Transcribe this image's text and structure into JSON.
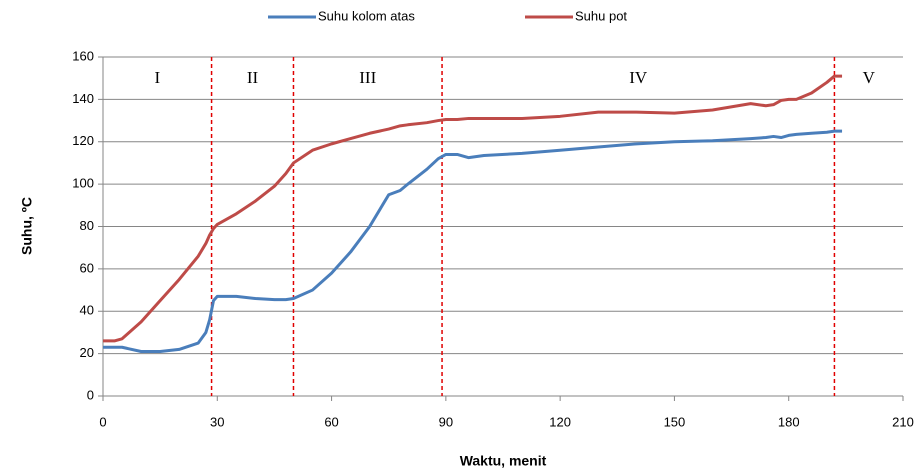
{
  "chart_data": {
    "type": "line",
    "x_label": "Waktu, menit",
    "y_label": "Suhu, ºC",
    "x": [
      0,
      3,
      5,
      10,
      15,
      20,
      25,
      27,
      28,
      29,
      30,
      35,
      40,
      45,
      48,
      50,
      55,
      60,
      65,
      70,
      75,
      78,
      80,
      85,
      88,
      90,
      93,
      96,
      100,
      110,
      120,
      130,
      140,
      150,
      160,
      170,
      174,
      176,
      178,
      180,
      182,
      186,
      190,
      192,
      194
    ],
    "series": [
      {
        "name": "Suhu kolom atas",
        "color": "#4a7ebb",
        "values": [
          23,
          23,
          23,
          21,
          21,
          22,
          25,
          30,
          36,
          45,
          47,
          47,
          46,
          45.5,
          45.5,
          46,
          50,
          58,
          68,
          80,
          95,
          97,
          100,
          107,
          112,
          114,
          114,
          112.5,
          113.5,
          114.5,
          116,
          117.5,
          119,
          120,
          120.5,
          121.5,
          122,
          122.5,
          122,
          123,
          123.5,
          124,
          124.5,
          125,
          125
        ]
      },
      {
        "name": "Suhu pot",
        "color": "#be4b48",
        "values": [
          26,
          26,
          27,
          35,
          45,
          55,
          66,
          72,
          76,
          79,
          81,
          86,
          92,
          99,
          105,
          110,
          116,
          119,
          121.5,
          124,
          126,
          127.5,
          128,
          129,
          130,
          130.5,
          130.5,
          131,
          131,
          131,
          132,
          134,
          134,
          133.5,
          135,
          138,
          137,
          137.5,
          139.5,
          140,
          140,
          143,
          148,
          151,
          151
        ]
      }
    ],
    "phase_boundaries": [
      28.5,
      50,
      89,
      192
    ],
    "phase_labels": [
      "I",
      "II",
      "III",
      "IV",
      "V"
    ],
    "phase_line_color": "#e00000",
    "xlim": [
      0,
      210
    ],
    "xticks": [
      0,
      30,
      60,
      90,
      120,
      150,
      180,
      210
    ],
    "ylim": [
      0,
      160
    ],
    "yticks": [
      0,
      20,
      40,
      60,
      80,
      100,
      120,
      140,
      160
    ],
    "grid": true,
    "legend": "top"
  }
}
